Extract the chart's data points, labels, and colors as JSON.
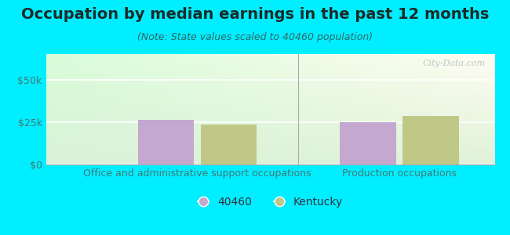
{
  "title": "Occupation by median earnings in the past 12 months",
  "subtitle": "(Note: State values scaled to 40460 population)",
  "categories": [
    "Office and administrative support occupations",
    "Production occupations"
  ],
  "values_40460": [
    26500,
    25000
  ],
  "values_kentucky": [
    23500,
    28500
  ],
  "bar_color_40460": "#c4a8d0",
  "bar_color_kentucky": "#c0c888",
  "ylim": [
    0,
    65000
  ],
  "yticks": [
    0,
    25000,
    50000
  ],
  "ytick_labels": [
    "$0",
    "$25k",
    "$50k"
  ],
  "background_outer": "#00eeff",
  "watermark": "City-Data.com",
  "legend_labels": [
    "40460",
    "Kentucky"
  ],
  "title_fontsize": 14,
  "subtitle_fontsize": 9,
  "tick_label_fontsize": 9,
  "axis_label_fontsize": 9,
  "title_color": "#1a2a2a",
  "subtitle_color": "#336666",
  "tick_color": "#447777",
  "label_color": "#447777"
}
